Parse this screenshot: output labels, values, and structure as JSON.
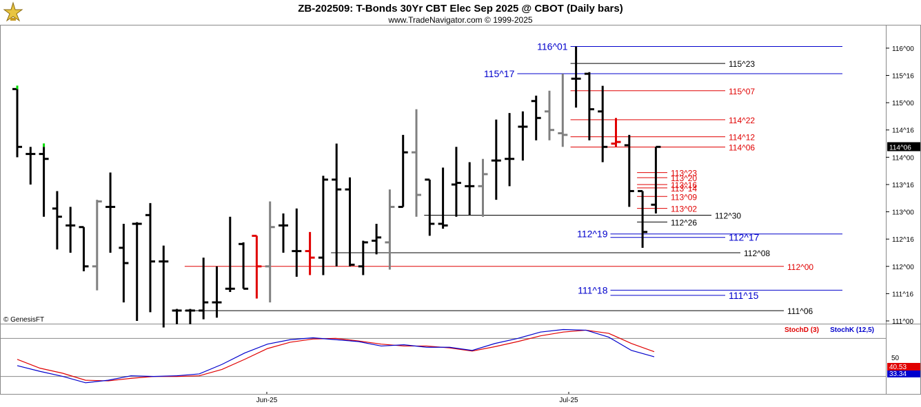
{
  "header": {
    "title": "ZB-202509:  T-Bonds 30Yr CBT Elec Sep 2025 @ CBOT  (Daily bars)",
    "subtitle": "www.TradeNavigator.com © 1999-2025",
    "copyright": "© GenesisFT"
  },
  "colors": {
    "up_bar": "#000000",
    "neutral_bar": "#808080",
    "key_bar": "#e00000",
    "marker_green": "#00dd00",
    "level_blue": "#0000cc",
    "level_red": "#e00000",
    "level_black": "#000000",
    "stoch_d": "#e00000",
    "stoch_k": "#0000cc"
  },
  "chart_data": {
    "type": "ohlc",
    "price_axis": {
      "ticks": [
        "116^00",
        "115^16",
        "115^00",
        "114^16",
        "114^00",
        "113^16",
        "113^00",
        "112^16",
        "112^00",
        "111^16",
        "111^00"
      ],
      "ylim": [
        111.0,
        116.125
      ],
      "current_price": "114^06"
    },
    "x_axis": {
      "labels": [
        "Jun-25",
        "Jul-25"
      ]
    },
    "bars": [
      {
        "h": 115.25,
        "l": 114.0,
        "o": 115.25,
        "c": 114.19,
        "color": "black",
        "marker": true
      },
      {
        "h": 114.19,
        "l": 113.5,
        "o": 114.06,
        "c": 114.06,
        "color": "black"
      },
      {
        "h": 114.19,
        "l": 112.91,
        "o": 114.06,
        "c": 113.97,
        "color": "black",
        "marker": true
      },
      {
        "h": 113.38,
        "l": 112.31,
        "o": 113.06,
        "c": 112.91,
        "color": "black"
      },
      {
        "h": 113.09,
        "l": 112.25,
        "o": 112.75,
        "c": 112.75,
        "color": "black"
      },
      {
        "h": 112.72,
        "l": 111.91,
        "o": 112.72,
        "c": 112.0,
        "color": "black"
      },
      {
        "h": 113.22,
        "l": 111.56,
        "o": 112.0,
        "c": 113.19,
        "color": "gray"
      },
      {
        "h": 113.72,
        "l": 112.25,
        "o": 113.09,
        "c": 113.09,
        "color": "black"
      },
      {
        "h": 112.78,
        "l": 111.34,
        "o": 112.34,
        "c": 112.06,
        "color": "black"
      },
      {
        "h": 112.81,
        "l": 111.0,
        "o": 112.78,
        "c": 112.78,
        "color": "black"
      },
      {
        "h": 113.16,
        "l": 111.16,
        "o": 112.94,
        "c": 112.09,
        "color": "black"
      },
      {
        "h": 112.38,
        "l": 110.88,
        "o": 112.09,
        "c": 112.09,
        "color": "black"
      },
      {
        "h": 111.22,
        "l": 110.94,
        "o": 111.19,
        "c": 111.19,
        "color": "black"
      },
      {
        "h": 111.22,
        "l": 110.94,
        "o": 111.19,
        "c": 111.19,
        "color": "black"
      },
      {
        "h": 112.16,
        "l": 111.03,
        "o": 111.19,
        "c": 111.34,
        "color": "black"
      },
      {
        "h": 112.0,
        "l": 111.06,
        "o": 111.34,
        "c": 111.34,
        "color": "black"
      },
      {
        "h": 112.91,
        "l": 111.53,
        "o": 111.59,
        "c": 111.59,
        "color": "black"
      },
      {
        "h": 112.44,
        "l": 111.59,
        "o": 112.41,
        "c": 111.59,
        "color": "black"
      },
      {
        "h": 112.56,
        "l": 111.41,
        "o": 112.56,
        "c": 112.0,
        "color": "red"
      },
      {
        "h": 113.19,
        "l": 111.34,
        "o": 112.0,
        "c": 112.72,
        "color": "gray"
      },
      {
        "h": 112.97,
        "l": 112.25,
        "o": 112.75,
        "c": 112.75,
        "color": "black"
      },
      {
        "h": 113.06,
        "l": 111.81,
        "o": 112.28,
        "c": 112.28,
        "color": "black"
      },
      {
        "h": 112.63,
        "l": 111.84,
        "o": 112.28,
        "c": 112.16,
        "color": "red"
      },
      {
        "h": 113.66,
        "l": 111.84,
        "o": 112.16,
        "c": 113.59,
        "color": "black"
      },
      {
        "h": 114.25,
        "l": 112.0,
        "o": 113.59,
        "c": 113.41,
        "color": "black"
      },
      {
        "h": 113.63,
        "l": 112.0,
        "o": 113.41,
        "c": 112.03,
        "color": "black"
      },
      {
        "h": 112.47,
        "l": 111.84,
        "o": 112.0,
        "c": 112.44,
        "color": "black"
      },
      {
        "h": 112.78,
        "l": 112.22,
        "o": 112.47,
        "c": 112.53,
        "color": "black"
      },
      {
        "h": 113.41,
        "l": 111.94,
        "o": 112.44,
        "c": 113.09,
        "color": "gray"
      },
      {
        "h": 114.41,
        "l": 113.09,
        "o": 113.09,
        "c": 114.09,
        "color": "black"
      },
      {
        "h": 114.88,
        "l": 112.91,
        "o": 114.09,
        "c": 113.31,
        "color": "gray"
      },
      {
        "h": 113.59,
        "l": 112.56,
        "o": 113.59,
        "c": 112.78,
        "color": "black"
      },
      {
        "h": 113.81,
        "l": 112.69,
        "o": 112.78,
        "c": 112.75,
        "color": "black"
      },
      {
        "h": 114.19,
        "l": 112.91,
        "o": 113.5,
        "c": 113.53,
        "color": "black"
      },
      {
        "h": 113.91,
        "l": 112.94,
        "o": 113.47,
        "c": 113.47,
        "color": "black"
      },
      {
        "h": 113.97,
        "l": 112.91,
        "o": 113.47,
        "c": 113.69,
        "color": "gray"
      },
      {
        "h": 114.69,
        "l": 113.22,
        "o": 113.94,
        "c": 113.94,
        "color": "black"
      },
      {
        "h": 114.81,
        "l": 113.47,
        "o": 113.97,
        "c": 113.97,
        "color": "black"
      },
      {
        "h": 114.84,
        "l": 113.94,
        "o": 114.56,
        "c": 114.56,
        "color": "black"
      },
      {
        "h": 115.13,
        "l": 114.31,
        "o": 115.03,
        "c": 114.72,
        "color": "black"
      },
      {
        "h": 115.22,
        "l": 114.31,
        "o": 114.84,
        "c": 114.5,
        "color": "gray"
      },
      {
        "h": 115.53,
        "l": 114.19,
        "o": 114.44,
        "c": 114.41,
        "color": "gray"
      },
      {
        "h": 116.03,
        "l": 114.91,
        "o": 115.44,
        "c": 115.44,
        "color": "black"
      },
      {
        "h": 115.56,
        "l": 114.31,
        "o": 115.53,
        "c": 114.88,
        "color": "black"
      },
      {
        "h": 115.31,
        "l": 113.91,
        "o": 114.84,
        "c": 114.19,
        "color": "black"
      },
      {
        "h": 114.72,
        "l": 114.19,
        "o": 114.25,
        "c": 114.28,
        "color": "red"
      },
      {
        "h": 114.41,
        "l": 113.09,
        "o": 114.22,
        "c": 113.38,
        "color": "black"
      },
      {
        "h": 113.38,
        "l": 112.34,
        "o": 113.38,
        "c": 112.63,
        "color": "black"
      },
      {
        "h": 114.19,
        "l": 112.97,
        "o": 113.13,
        "c": 114.19,
        "color": "black"
      }
    ],
    "levels": [
      {
        "label": "116^01",
        "value": 116.031,
        "color": "blue",
        "from": 42,
        "label_side": "left"
      },
      {
        "label": "115^23",
        "value": 115.719,
        "color": "black",
        "from": 42,
        "label_side": "right"
      },
      {
        "label": "115^17",
        "value": 115.531,
        "color": "blue",
        "from": 38,
        "label_side": "left"
      },
      {
        "label": "115^07",
        "value": 115.219,
        "color": "red",
        "from": 42,
        "label_side": "right"
      },
      {
        "label": "114^22",
        "value": 114.688,
        "color": "red",
        "from": 42,
        "label_side": "right"
      },
      {
        "label": "114^12",
        "value": 114.375,
        "color": "red",
        "from": 42,
        "label_side": "right"
      },
      {
        "label": "114^06",
        "value": 114.188,
        "color": "red",
        "from": 42,
        "label_side": "right"
      },
      {
        "label": "113^23",
        "value": 113.719,
        "color": "red",
        "from": 47,
        "label_side": "right"
      },
      {
        "label": "113^20",
        "value": 113.625,
        "color": "red",
        "from": 47,
        "label_side": "right"
      },
      {
        "label": "113^16",
        "value": 113.5,
        "color": "red",
        "from": 47,
        "label_side": "right"
      },
      {
        "label": "113^14",
        "value": 113.438,
        "color": "red",
        "from": 47,
        "label_side": "right"
      },
      {
        "label": "113^09",
        "value": 113.281,
        "color": "red",
        "from": 47,
        "label_side": "right"
      },
      {
        "label": "113^02",
        "value": 113.063,
        "color": "red",
        "from": 47,
        "label_side": "right"
      },
      {
        "label": "112^30",
        "value": 112.938,
        "color": "black",
        "from": 31,
        "label_side": "right"
      },
      {
        "label": "112^26",
        "value": 112.813,
        "color": "black",
        "from": 47,
        "label_side": "right"
      },
      {
        "label": "112^19",
        "value": 112.594,
        "color": "blue",
        "from": 45,
        "label_side": "left"
      },
      {
        "label": "112^17",
        "value": 112.531,
        "color": "blue",
        "from": 45,
        "label_side": "right"
      },
      {
        "label": "112^08",
        "value": 112.25,
        "color": "black",
        "from": 24,
        "label_side": "right"
      },
      {
        "label": "112^00",
        "value": 112.0,
        "color": "red",
        "from": 13,
        "label_side": "right"
      },
      {
        "label": "111^18",
        "value": 111.563,
        "color": "blue",
        "from": 45,
        "label_side": "left"
      },
      {
        "label": "111^15",
        "value": 111.469,
        "color": "blue",
        "from": 45,
        "label_side": "right"
      },
      {
        "label": "111^06",
        "value": 111.188,
        "color": "black",
        "from": 13,
        "label_side": "right"
      }
    ],
    "stochastic": {
      "legend": [
        {
          "name": "StochD (3)",
          "color": "red"
        },
        {
          "name": "StochK (12,5)",
          "color": "blue"
        }
      ],
      "ticks": [
        "50"
      ],
      "ylim": [
        0,
        100
      ],
      "k_label": "33.34",
      "d_label": "40.53",
      "k_values": [
        37,
        28,
        20,
        10,
        14,
        21,
        20,
        21,
        24,
        39,
        57,
        71,
        78,
        81,
        78,
        75,
        68,
        70,
        66,
        66,
        61,
        72,
        80,
        90,
        94,
        93,
        82,
        61,
        51
      ],
      "d_values": [
        47,
        33,
        25,
        14,
        13,
        17,
        20,
        20,
        21,
        31,
        47,
        64,
        74,
        79,
        80,
        76,
        71,
        68,
        68,
        65,
        60,
        67,
        75,
        84,
        90,
        93,
        88,
        72,
        59
      ]
    }
  }
}
